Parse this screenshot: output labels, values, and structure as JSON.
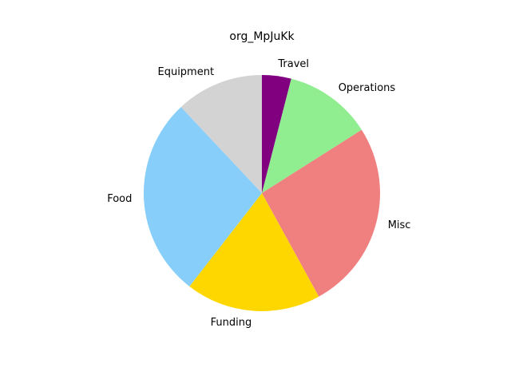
{
  "chart_data": {
    "type": "pie",
    "title": "org_MpJuKk",
    "start_angle_deg": 90,
    "direction": "clockwise",
    "slices": [
      {
        "label": "Travel",
        "value": 4.0,
        "color": "#800080"
      },
      {
        "label": "Operations",
        "value": 12.0,
        "color": "#90ee90"
      },
      {
        "label": "Misc",
        "value": 26.0,
        "color": "#f08080"
      },
      {
        "label": "Funding",
        "value": 18.5,
        "color": "#ffd700"
      },
      {
        "label": "Food",
        "value": 27.5,
        "color": "#87cefa"
      },
      {
        "label": "Equipment",
        "value": 12.0,
        "color": "#d3d3d3"
      }
    ]
  }
}
